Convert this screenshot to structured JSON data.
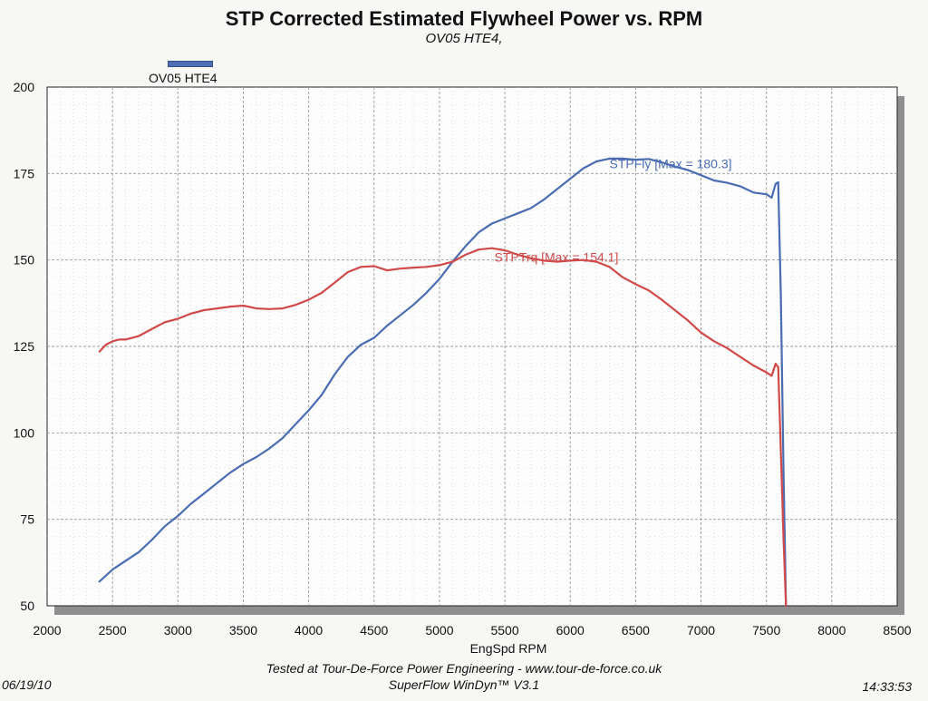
{
  "header": {
    "title": "STP Corrected Estimated Flywheel Power vs. RPM",
    "subtitle": "OV05 HTE4,"
  },
  "legend": {
    "label": "OV05 HTE4",
    "color": "#5170b4"
  },
  "footer": {
    "line1": "Tested at Tour-De-Force Power Engineering - www.tour-de-force.co.uk",
    "line2": "SuperFlow WinDyn™ V3.1",
    "date": "06/19/10",
    "time": "14:33:53"
  },
  "chart_data": {
    "type": "line",
    "title": "STP Corrected Estimated Flywheel Power vs. RPM",
    "subtitle": "OV05 HTE4,",
    "xlabel": "EngSpd RPM",
    "ylabel": "",
    "xlim": [
      2000,
      8500
    ],
    "ylim": [
      50,
      200
    ],
    "xticks": [
      2000,
      2500,
      3000,
      3500,
      4000,
      4500,
      5000,
      5500,
      6000,
      6500,
      7000,
      7500,
      8000,
      8500
    ],
    "yticks": [
      50,
      75,
      100,
      125,
      150,
      175,
      200
    ],
    "grid": true,
    "legend_position": "top-left",
    "series": [
      {
        "name": "STPFly",
        "annotation": "STPFly [Max = 180.3]",
        "color": "#4a6cb3",
        "x": [
          2400,
          2500,
          2600,
          2700,
          2800,
          2900,
          3000,
          3100,
          3200,
          3300,
          3400,
          3500,
          3600,
          3700,
          3800,
          3900,
          4000,
          4100,
          4200,
          4300,
          4400,
          4500,
          4600,
          4700,
          4800,
          4900,
          5000,
          5100,
          5200,
          5300,
          5400,
          5500,
          5600,
          5700,
          5800,
          5900,
          6000,
          6100,
          6200,
          6300,
          6400,
          6500,
          6600,
          6700,
          6800,
          6900,
          7000,
          7100,
          7200,
          7300,
          7400,
          7500,
          7540,
          7570,
          7590,
          7610,
          7630,
          7650
        ],
        "y": [
          57,
          60.5,
          63,
          65.5,
          69,
          73,
          76,
          79.5,
          82.5,
          85.5,
          88.5,
          91,
          93,
          95.5,
          98.5,
          102.5,
          106.5,
          111,
          117,
          122,
          125.5,
          127.5,
          131,
          134,
          137,
          140.5,
          144.5,
          149.5,
          154,
          158,
          160.5,
          162,
          163.5,
          165,
          167.5,
          170.5,
          173.5,
          176.5,
          178.5,
          179.3,
          179.3,
          179,
          179.2,
          178.2,
          177,
          176,
          174.5,
          173,
          172.3,
          171.3,
          169.5,
          169,
          168,
          172,
          172.5,
          140,
          90,
          48
        ]
      },
      {
        "name": "STPTrq",
        "annotation": "STPTrq [Max = 154.1]",
        "color": "#d14a4a",
        "x": [
          2400,
          2450,
          2500,
          2550,
          2600,
          2700,
          2800,
          2900,
          3000,
          3100,
          3200,
          3300,
          3400,
          3500,
          3600,
          3700,
          3800,
          3900,
          4000,
          4100,
          4200,
          4300,
          4400,
          4500,
          4600,
          4700,
          4800,
          4900,
          5000,
          5100,
          5200,
          5300,
          5400,
          5500,
          5600,
          5700,
          5800,
          5900,
          6000,
          6100,
          6200,
          6300,
          6400,
          6500,
          6600,
          6700,
          6800,
          6900,
          7000,
          7100,
          7200,
          7300,
          7400,
          7500,
          7540,
          7570,
          7590,
          7610,
          7630,
          7650
        ],
        "y": [
          123.5,
          125.5,
          126.5,
          127,
          127,
          128,
          130,
          132,
          133,
          134.5,
          135.5,
          136,
          136.5,
          136.8,
          136,
          135.8,
          136,
          137,
          138.5,
          140.5,
          143.5,
          146.5,
          148,
          148.2,
          147,
          147.5,
          147.8,
          148,
          148.5,
          149.5,
          151.5,
          153,
          153.4,
          152.8,
          151.5,
          150.5,
          149.8,
          149.5,
          149.8,
          150,
          149.5,
          148,
          145,
          143,
          141.2,
          138.5,
          135.5,
          132.5,
          129,
          126.5,
          124.5,
          122,
          119.5,
          117.5,
          116.5,
          120,
          119,
          95,
          70,
          48
        ]
      }
    ]
  }
}
